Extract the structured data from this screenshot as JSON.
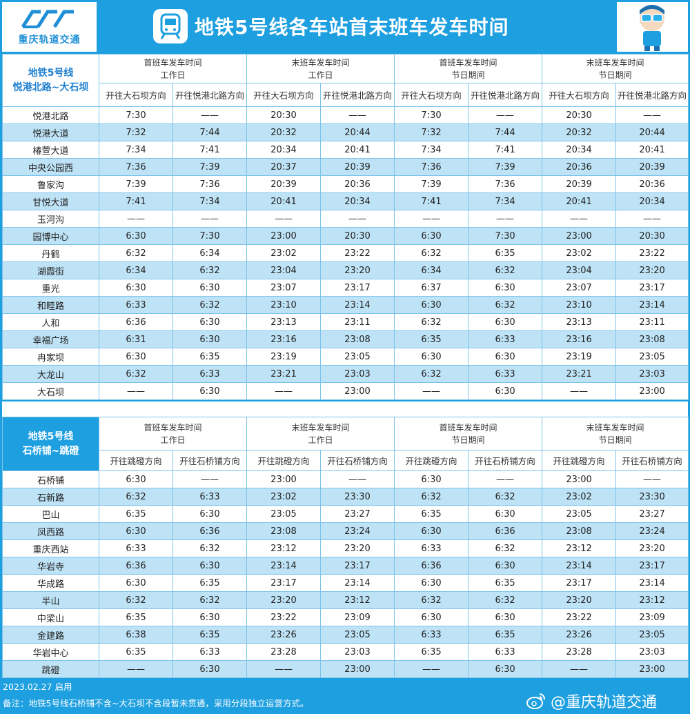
{
  "header": {
    "logo_text": "重庆轨道交通",
    "title": "地铁5号线各车站首末班车发车时间"
  },
  "table1": {
    "line_name": "地铁5号线",
    "line_span": "悦港北路~大石坝",
    "groups": [
      {
        "a": "首班车发车时间",
        "b": "工作日"
      },
      {
        "a": "末班车发车时间",
        "b": "工作日"
      },
      {
        "a": "首班车发车时间",
        "b": "节日期间"
      },
      {
        "a": "末班车发车时间",
        "b": "节日期间"
      }
    ],
    "directions": [
      "开往大石坝方向",
      "开往悦港北路方向",
      "开往大石坝方向",
      "开往悦港北路方向",
      "开往大石坝方向",
      "开往悦港北路方向",
      "开往大石坝方向",
      "开往悦港北路方向"
    ],
    "rows": [
      [
        "悦港北路",
        "7:30",
        "——",
        "20:30",
        "——",
        "7:30",
        "——",
        "20:30",
        "——"
      ],
      [
        "悦港大道",
        "7:32",
        "7:44",
        "20:32",
        "20:44",
        "7:32",
        "7:44",
        "20:32",
        "20:44"
      ],
      [
        "椿萱大道",
        "7:34",
        "7:41",
        "20:34",
        "20:41",
        "7:34",
        "7:41",
        "20:34",
        "20:41"
      ],
      [
        "中央公园西",
        "7:36",
        "7:39",
        "20:37",
        "20:39",
        "7:36",
        "7:39",
        "20:36",
        "20:39"
      ],
      [
        "鲁家沟",
        "7:39",
        "7:36",
        "20:39",
        "20:36",
        "7:39",
        "7:36",
        "20:39",
        "20:36"
      ],
      [
        "甘悦大道",
        "7:41",
        "7:34",
        "20:41",
        "20:34",
        "7:41",
        "7:34",
        "20:41",
        "20:34"
      ],
      [
        "玉河沟",
        "——",
        "——",
        "——",
        "——",
        "——",
        "——",
        "——",
        "——"
      ],
      [
        "园博中心",
        "6:30",
        "7:30",
        "23:00",
        "20:30",
        "6:30",
        "7:30",
        "23:00",
        "20:30"
      ],
      [
        "丹鹤",
        "6:32",
        "6:34",
        "23:02",
        "23:22",
        "6:32",
        "6:35",
        "23:02",
        "23:22"
      ],
      [
        "湖霞街",
        "6:34",
        "6:32",
        "23:04",
        "23:20",
        "6:34",
        "6:32",
        "23:04",
        "23:20"
      ],
      [
        "重光",
        "6:30",
        "6:30",
        "23:07",
        "23:17",
        "6:37",
        "6:30",
        "23:07",
        "23:17"
      ],
      [
        "和睦路",
        "6:33",
        "6:32",
        "23:10",
        "23:14",
        "6:30",
        "6:32",
        "23:10",
        "23:14"
      ],
      [
        "人和",
        "6:36",
        "6:30",
        "23:13",
        "23:11",
        "6:32",
        "6:30",
        "23:13",
        "23:11"
      ],
      [
        "幸福广场",
        "6:31",
        "6:30",
        "23:16",
        "23:08",
        "6:35",
        "6:33",
        "23:16",
        "23:08"
      ],
      [
        "冉家坝",
        "6:30",
        "6:35",
        "23:19",
        "23:05",
        "6:30",
        "6:30",
        "23:19",
        "23:05"
      ],
      [
        "大龙山",
        "6:32",
        "6:33",
        "23:21",
        "23:03",
        "6:32",
        "6:33",
        "23:21",
        "23:03"
      ],
      [
        "大石坝",
        "——",
        "6:30",
        "——",
        "23:00",
        "——",
        "6:30",
        "——",
        "23:00"
      ]
    ]
  },
  "table2": {
    "line_name": "地铁5号线",
    "line_span": "石桥铺~跳磴",
    "groups": [
      {
        "a": "首班车发车时间",
        "b": "工作日"
      },
      {
        "a": "末班车发车时间",
        "b": "工作日"
      },
      {
        "a": "首班车发车时间",
        "b": "节日期间"
      },
      {
        "a": "末班车发车时间",
        "b": "节日期间"
      }
    ],
    "directions": [
      "开往跳磴方向",
      "开往石桥铺方向",
      "开往跳磴方向",
      "开往石桥铺方向",
      "开往跳磴方向",
      "开往石桥铺方向",
      "开往跳磴方向",
      "开往石桥铺方向"
    ],
    "rows": [
      [
        "石桥铺",
        "6:30",
        "——",
        "23:00",
        "——",
        "6:30",
        "——",
        "23:00",
        "——"
      ],
      [
        "石新路",
        "6:32",
        "6:33",
        "23:02",
        "23:30",
        "6:32",
        "6:32",
        "23:02",
        "23:30"
      ],
      [
        "巴山",
        "6:35",
        "6:30",
        "23:05",
        "23:27",
        "6:35",
        "6:30",
        "23:05",
        "23:27"
      ],
      [
        "凤西路",
        "6:30",
        "6:36",
        "23:08",
        "23:24",
        "6:30",
        "6:36",
        "23:08",
        "23:24"
      ],
      [
        "重庆西站",
        "6:33",
        "6:32",
        "23:12",
        "23:20",
        "6:33",
        "6:32",
        "23:12",
        "23:20"
      ],
      [
        "华岩寺",
        "6:36",
        "6:30",
        "23:14",
        "23:17",
        "6:36",
        "6:30",
        "23:14",
        "23:17"
      ],
      [
        "华成路",
        "6:30",
        "6:35",
        "23:17",
        "23:14",
        "6:30",
        "6:35",
        "23:17",
        "23:14"
      ],
      [
        "半山",
        "6:32",
        "6:32",
        "23:20",
        "23:12",
        "6:32",
        "6:32",
        "23:20",
        "23:12"
      ],
      [
        "中梁山",
        "6:35",
        "6:30",
        "23:22",
        "23:09",
        "6:30",
        "6:30",
        "23:22",
        "23:09"
      ],
      [
        "金建路",
        "6:38",
        "6:35",
        "23:26",
        "23:05",
        "6:33",
        "6:35",
        "23:26",
        "23:05"
      ],
      [
        "华岩中心",
        "6:35",
        "6:33",
        "23:28",
        "23:03",
        "6:35",
        "6:33",
        "23:28",
        "23:03"
      ],
      [
        "跳磴",
        "——",
        "6:30",
        "——",
        "23:00",
        "——",
        "6:30",
        "——",
        "23:00"
      ]
    ]
  },
  "footer": {
    "date": "2023.02.27 启用",
    "note": "备注：地铁5号线石桥铺不含~大石坝不含段暂未贯通，采用分段独立运营方式。",
    "weibo": "@重庆轨道交通"
  }
}
